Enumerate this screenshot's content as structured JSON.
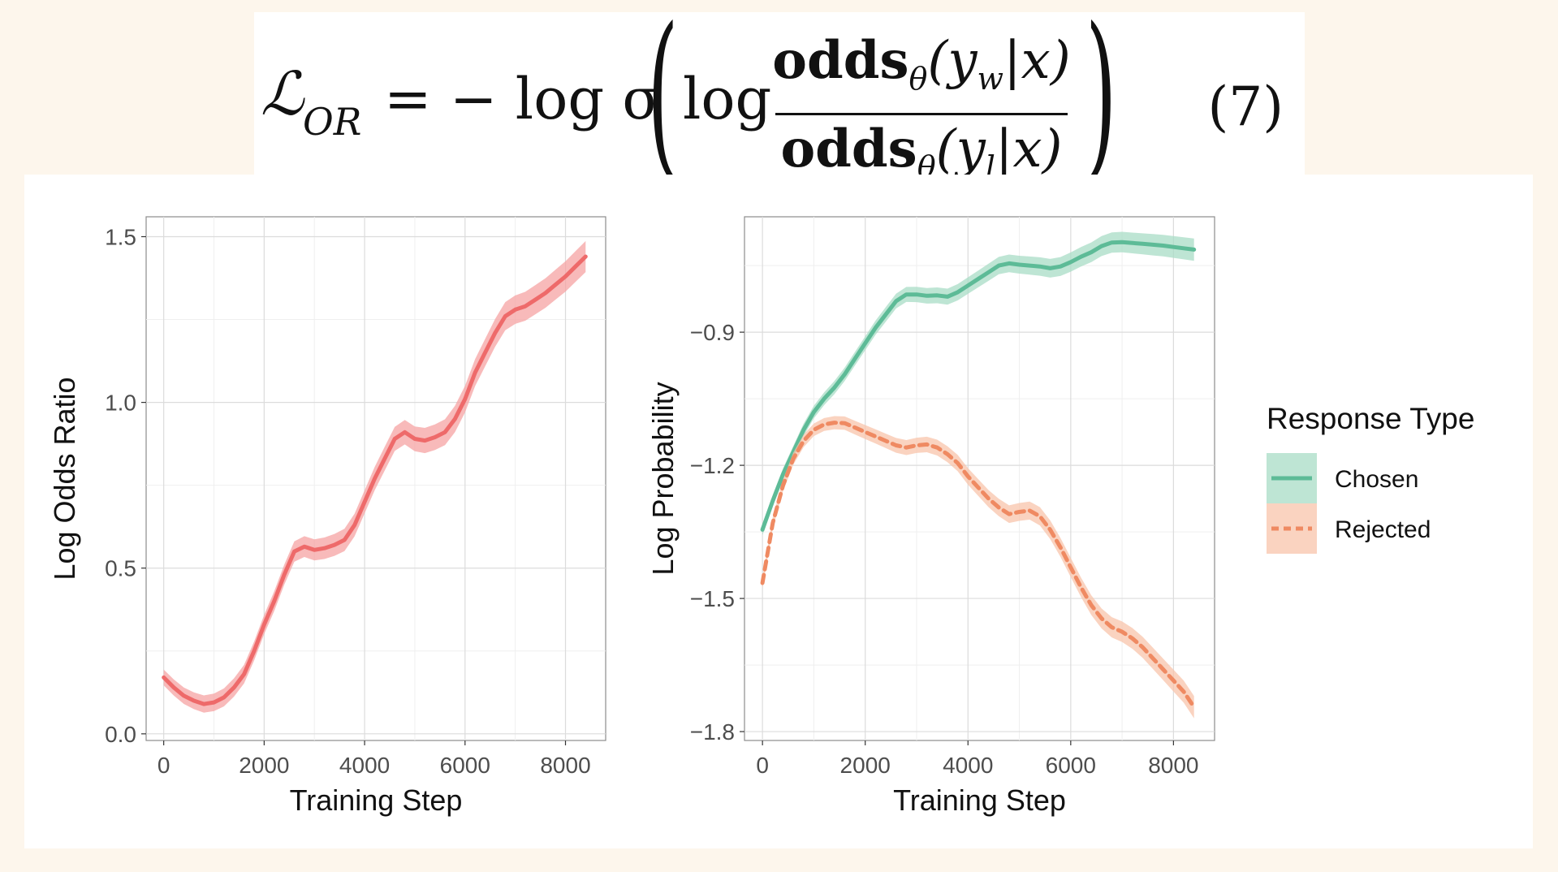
{
  "equation": {
    "lhs_symbol": "ℒ",
    "lhs_subscript": "OR",
    "middle": "= − log σ",
    "log": "log",
    "numerator_bold": "odds",
    "numerator_sub": "θ",
    "numerator_rest": "(y",
    "numerator_idx": "w",
    "numerator_tail": "|x)",
    "denominator_bold": "odds",
    "denominator_sub": "θ",
    "denominator_rest": "(y",
    "denominator_idx": "l",
    "denominator_tail": "|x)",
    "number": "(7)"
  },
  "chart_data": [
    {
      "type": "line",
      "title": "",
      "xlabel": "Training Step",
      "ylabel": "Log Odds Ratio",
      "xlim": [
        -350,
        8800
      ],
      "ylim": [
        -0.02,
        1.56
      ],
      "x_ticks": [
        0,
        2000,
        4000,
        6000,
        8000
      ],
      "x_tick_labels": [
        "0",
        "2000",
        "4000",
        "6000",
        "8000"
      ],
      "y_ticks": [
        0.0,
        0.5,
        1.0,
        1.5
      ],
      "y_tick_labels": [
        "0.0",
        "0.5",
        "1.0",
        "1.5"
      ],
      "grid": true,
      "series": [
        {
          "color": "#ee6a6a",
          "band_color": "#f6a3a3",
          "dash": "",
          "points": [
            [
              0,
              0.17
            ],
            [
              200,
              0.14
            ],
            [
              400,
              0.115
            ],
            [
              600,
              0.1
            ],
            [
              800,
              0.09
            ],
            [
              1000,
              0.095
            ],
            [
              1200,
              0.11
            ],
            [
              1400,
              0.14
            ],
            [
              1600,
              0.18
            ],
            [
              1800,
              0.25
            ],
            [
              2000,
              0.33
            ],
            [
              2200,
              0.4
            ],
            [
              2400,
              0.48
            ],
            [
              2600,
              0.55
            ],
            [
              2800,
              0.565
            ],
            [
              3000,
              0.555
            ],
            [
              3200,
              0.56
            ],
            [
              3400,
              0.57
            ],
            [
              3600,
              0.585
            ],
            [
              3800,
              0.63
            ],
            [
              4000,
              0.7
            ],
            [
              4200,
              0.77
            ],
            [
              4400,
              0.83
            ],
            [
              4600,
              0.89
            ],
            [
              4800,
              0.91
            ],
            [
              5000,
              0.89
            ],
            [
              5200,
              0.885
            ],
            [
              5400,
              0.895
            ],
            [
              5600,
              0.91
            ],
            [
              5800,
              0.95
            ],
            [
              6000,
              1.01
            ],
            [
              6200,
              1.09
            ],
            [
              6400,
              1.15
            ],
            [
              6600,
              1.21
            ],
            [
              6800,
              1.26
            ],
            [
              7000,
              1.28
            ],
            [
              7200,
              1.29
            ],
            [
              7400,
              1.31
            ],
            [
              7600,
              1.33
            ],
            [
              7800,
              1.355
            ],
            [
              8000,
              1.38
            ],
            [
              8200,
              1.41
            ],
            [
              8400,
              1.44
            ]
          ]
        }
      ]
    },
    {
      "type": "line",
      "title": "",
      "xlabel": "Training Step",
      "ylabel": "Log Probability",
      "xlim": [
        -350,
        8800
      ],
      "ylim": [
        -1.82,
        -0.64
      ],
      "x_ticks": [
        0,
        2000,
        4000,
        6000,
        8000
      ],
      "x_tick_labels": [
        "0",
        "2000",
        "4000",
        "6000",
        "8000"
      ],
      "y_ticks": [
        -1.8,
        -1.5,
        -1.2,
        -0.9
      ],
      "y_tick_labels": [
        "−1.8",
        "−1.5",
        "−1.2",
        "−0.9"
      ],
      "grid": true,
      "legend": {
        "title": "Response Type",
        "placement": "right",
        "entries": [
          "Chosen",
          "Rejected"
        ]
      },
      "series": [
        {
          "name": "Chosen",
          "color": "#5dbb97",
          "band_color": "#a8dcc6",
          "dash": "",
          "points": [
            [
              0,
              -1.345
            ],
            [
              200,
              -1.28
            ],
            [
              400,
              -1.22
            ],
            [
              600,
              -1.17
            ],
            [
              800,
              -1.12
            ],
            [
              1000,
              -1.08
            ],
            [
              1200,
              -1.05
            ],
            [
              1400,
              -1.025
            ],
            [
              1600,
              -0.995
            ],
            [
              1800,
              -0.96
            ],
            [
              2000,
              -0.925
            ],
            [
              2200,
              -0.89
            ],
            [
              2400,
              -0.86
            ],
            [
              2600,
              -0.83
            ],
            [
              2800,
              -0.815
            ],
            [
              3000,
              -0.815
            ],
            [
              3200,
              -0.818
            ],
            [
              3400,
              -0.817
            ],
            [
              3600,
              -0.82
            ],
            [
              3800,
              -0.81
            ],
            [
              4000,
              -0.795
            ],
            [
              4200,
              -0.78
            ],
            [
              4400,
              -0.765
            ],
            [
              4600,
              -0.75
            ],
            [
              4800,
              -0.745
            ],
            [
              5000,
              -0.748
            ],
            [
              5200,
              -0.75
            ],
            [
              5400,
              -0.752
            ],
            [
              5600,
              -0.756
            ],
            [
              5800,
              -0.752
            ],
            [
              6000,
              -0.742
            ],
            [
              6200,
              -0.73
            ],
            [
              6400,
              -0.72
            ],
            [
              6600,
              -0.706
            ],
            [
              6800,
              -0.698
            ],
            [
              7000,
              -0.697
            ],
            [
              7200,
              -0.699
            ],
            [
              7400,
              -0.701
            ],
            [
              7600,
              -0.703
            ],
            [
              7800,
              -0.705
            ],
            [
              8000,
              -0.708
            ],
            [
              8200,
              -0.711
            ],
            [
              8400,
              -0.714
            ]
          ]
        },
        {
          "name": "Rejected",
          "color": "#ef8a62",
          "band_color": "#f8c4ab",
          "dash": "10,7",
          "points": [
            [
              0,
              -1.465
            ],
            [
              200,
              -1.33
            ],
            [
              400,
              -1.245
            ],
            [
              600,
              -1.185
            ],
            [
              800,
              -1.145
            ],
            [
              1000,
              -1.12
            ],
            [
              1200,
              -1.108
            ],
            [
              1400,
              -1.104
            ],
            [
              1600,
              -1.105
            ],
            [
              1800,
              -1.115
            ],
            [
              2000,
              -1.125
            ],
            [
              2200,
              -1.135
            ],
            [
              2400,
              -1.145
            ],
            [
              2600,
              -1.155
            ],
            [
              2800,
              -1.16
            ],
            [
              3000,
              -1.155
            ],
            [
              3200,
              -1.153
            ],
            [
              3400,
              -1.16
            ],
            [
              3600,
              -1.175
            ],
            [
              3800,
              -1.195
            ],
            [
              4000,
              -1.225
            ],
            [
              4200,
              -1.25
            ],
            [
              4400,
              -1.275
            ],
            [
              4600,
              -1.295
            ],
            [
              4800,
              -1.31
            ],
            [
              5000,
              -1.305
            ],
            [
              5200,
              -1.302
            ],
            [
              5400,
              -1.315
            ],
            [
              5600,
              -1.345
            ],
            [
              5800,
              -1.385
            ],
            [
              6000,
              -1.43
            ],
            [
              6200,
              -1.475
            ],
            [
              6400,
              -1.515
            ],
            [
              6600,
              -1.545
            ],
            [
              6800,
              -1.565
            ],
            [
              7000,
              -1.575
            ],
            [
              7200,
              -1.59
            ],
            [
              7400,
              -1.61
            ],
            [
              7600,
              -1.635
            ],
            [
              7800,
              -1.66
            ],
            [
              8000,
              -1.685
            ],
            [
              8200,
              -1.71
            ],
            [
              8400,
              -1.745
            ]
          ]
        }
      ]
    }
  ]
}
